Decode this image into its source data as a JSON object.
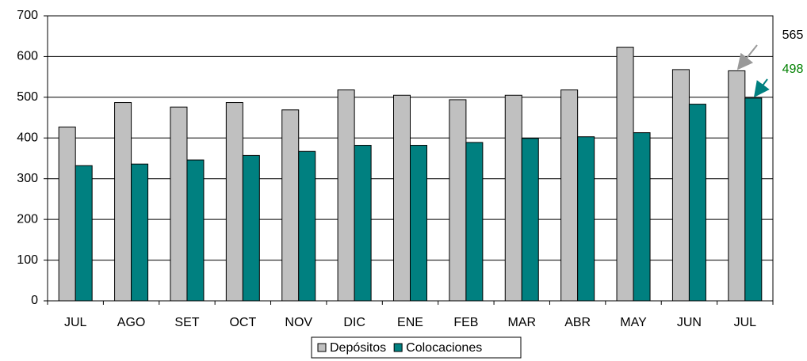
{
  "chart_data": {
    "type": "bar",
    "categories": [
      "JUL",
      "AGO",
      "SET",
      "OCT",
      "NOV",
      "DIC",
      "ENE",
      "FEB",
      "MAR",
      "ABR",
      "MAY",
      "JUN",
      "JUL"
    ],
    "series": [
      {
        "name": "Depósitos",
        "color": "#c0c0c0",
        "values": [
          427,
          487,
          476,
          487,
          469,
          518,
          505,
          494,
          505,
          518,
          623,
          568,
          565
        ]
      },
      {
        "name": "Colocaciones",
        "color": "#008080",
        "values": [
          332,
          336,
          346,
          357,
          367,
          382,
          382,
          389,
          399,
          403,
          413,
          483,
          498
        ]
      }
    ],
    "annotations": [
      {
        "text": "565",
        "color": "#000000",
        "arrow_color": "#999999"
      },
      {
        "text": "498",
        "color": "#008000",
        "arrow_color": "#008080"
      }
    ],
    "ylim": [
      0,
      700
    ],
    "yticks": [
      0,
      100,
      200,
      300,
      400,
      500,
      600,
      700
    ],
    "grid": true,
    "legend": "bottom"
  }
}
